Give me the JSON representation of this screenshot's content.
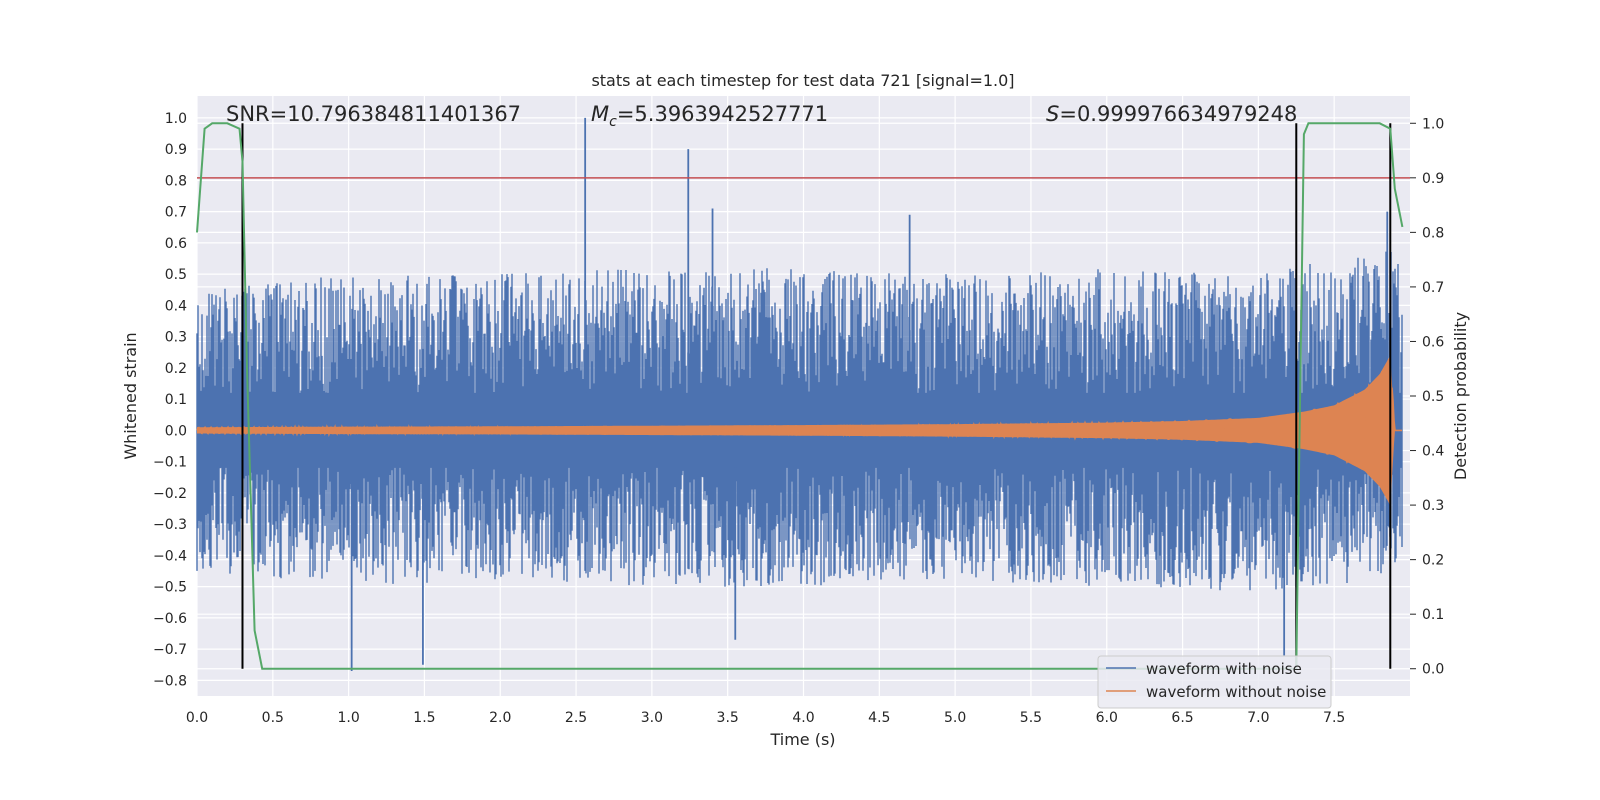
{
  "chart_data": {
    "type": "line",
    "title": "stats at each timestep for test data 721 [signal=1.0]",
    "xlabel": "Time (s)",
    "ylabel": "Whitened strain",
    "ylabel_right": "Detection probability",
    "xlim": [
      0.0,
      8.0
    ],
    "ylim": [
      -0.85,
      1.07
    ],
    "ylim_right": [
      -0.05,
      1.05
    ],
    "x_ticks": [
      "0.0",
      "0.5",
      "1.0",
      "1.5",
      "2.0",
      "2.5",
      "3.0",
      "3.5",
      "4.0",
      "4.5",
      "5.0",
      "5.5",
      "6.0",
      "6.5",
      "7.0",
      "7.5"
    ],
    "y_ticks": [
      "1.0",
      "0.9",
      "0.8",
      "0.7",
      "0.6",
      "0.5",
      "0.4",
      "0.3",
      "0.2",
      "0.1",
      "0.0",
      "−0.1",
      "−0.2",
      "−0.3",
      "−0.4",
      "−0.5",
      "−0.6",
      "−0.7",
      "−0.8"
    ],
    "y_ticks_right": [
      "1.0",
      "0.9",
      "0.8",
      "0.7",
      "0.6",
      "0.5",
      "0.4",
      "0.3",
      "0.2",
      "0.1",
      "0.0"
    ],
    "annotations": {
      "snr": "SNR=10.796384811401367",
      "mc": "=5.3963942527771",
      "mc_symbol": "M",
      "mc_sub": "c",
      "s": "=0.999976634979248",
      "s_symbol": "S"
    },
    "legend": {
      "placement": "lower-right",
      "entries": [
        "waveform with noise",
        "waveform without noise"
      ]
    },
    "colors": {
      "noise": "#4c72b0",
      "clean": "#dd8452",
      "probability": "#55a868",
      "threshold": "#c44e52",
      "markers": "#000000",
      "axes_bg": "#eaeaf2",
      "grid": "#ffffff"
    },
    "threshold": 0.9,
    "markers_x": [
      0.3,
      7.25,
      7.87
    ],
    "noise_envelope": {
      "x": [
        0.0,
        1.0,
        2.0,
        3.0,
        4.0,
        5.0,
        6.0,
        7.0,
        7.5,
        7.95
      ],
      "upper": [
        0.45,
        0.5,
        0.5,
        0.52,
        0.52,
        0.5,
        0.52,
        0.5,
        0.55,
        0.58
      ],
      "lower": [
        -0.45,
        -0.5,
        -0.48,
        -0.5,
        -0.5,
        -0.48,
        -0.5,
        -0.52,
        -0.5,
        -0.45
      ]
    },
    "noise_spikes": [
      {
        "x": 2.56,
        "y": 1.0
      },
      {
        "x": 3.24,
        "y": 0.9
      },
      {
        "x": 1.02,
        "y": -0.77
      },
      {
        "x": 1.49,
        "y": -0.75
      },
      {
        "x": 7.17,
        "y": -0.72
      },
      {
        "x": 3.4,
        "y": 0.71
      },
      {
        "x": 0.3,
        "y": 0.63
      },
      {
        "x": 3.55,
        "y": -0.67
      },
      {
        "x": 7.85,
        "y": 0.7
      },
      {
        "x": 4.7,
        "y": 0.69
      }
    ],
    "clean_waveform": {
      "x": [
        0.0,
        1.0,
        2.0,
        3.0,
        4.0,
        5.0,
        6.0,
        6.5,
        7.0,
        7.3,
        7.5,
        7.7,
        7.8,
        7.87,
        7.9,
        7.95
      ],
      "amplitude": [
        0.01,
        0.012,
        0.013,
        0.015,
        0.017,
        0.02,
        0.025,
        0.03,
        0.04,
        0.06,
        0.08,
        0.13,
        0.18,
        0.24,
        0.0,
        0.0
      ]
    },
    "probability": {
      "x": [
        0.0,
        0.05,
        0.1,
        0.2,
        0.28,
        0.3,
        0.33,
        0.38,
        0.43,
        7.25,
        7.27,
        7.3,
        7.33,
        7.8,
        7.87,
        7.9,
        7.95
      ],
      "y": [
        0.8,
        0.99,
        1.0,
        1.0,
        0.99,
        0.93,
        0.55,
        0.07,
        0.0,
        0.0,
        0.4,
        0.98,
        1.0,
        1.0,
        0.99,
        0.88,
        0.81
      ]
    }
  }
}
